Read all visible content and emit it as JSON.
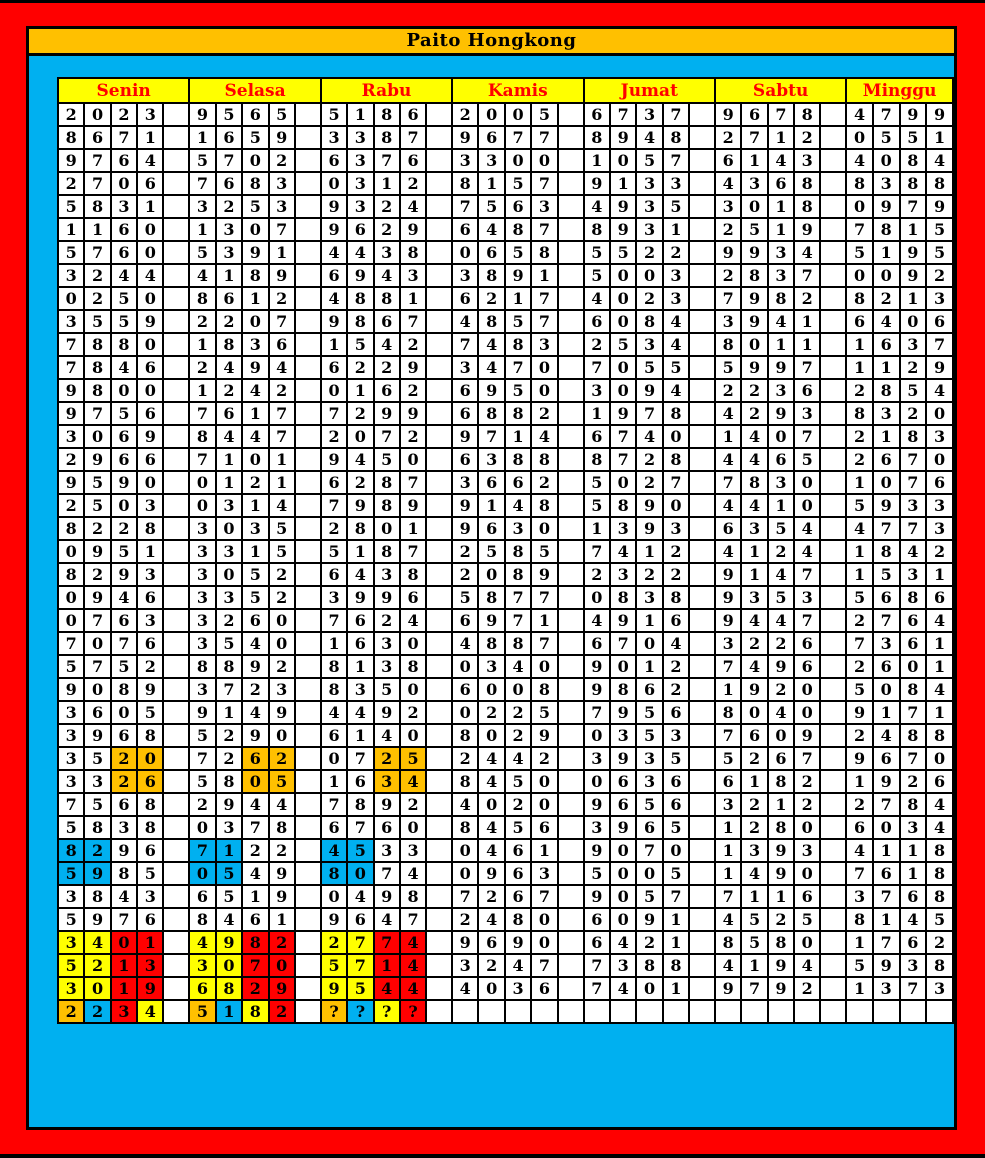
{
  "title": "Paito Hongkong",
  "days": [
    "Senin",
    "Selasa",
    "Rabu",
    "Kamis",
    "Jumat",
    "Sabtu",
    "Minggu"
  ],
  "colors": {
    "page_background": "#ff0000",
    "panel_background": "#00b0f0",
    "title_bar": "#ffc000",
    "header_background": "#ffff00",
    "header_text": "#ff0000",
    "cell_background": "#ffffff",
    "digit_text": "#000000",
    "highlight_orange": "#ffc000",
    "highlight_blue": "#00b0f0",
    "highlight_yellow": "#ffff00",
    "highlight_red": "#ff0000"
  },
  "rows": [
    [
      "2023",
      "9565",
      "5186",
      "2005",
      "6737",
      "9678",
      "4799"
    ],
    [
      "8671",
      "1659",
      "3387",
      "9677",
      "8948",
      "2712",
      "0551"
    ],
    [
      "9764",
      "5702",
      "6376",
      "3300",
      "1057",
      "6143",
      "4084"
    ],
    [
      "2706",
      "7683",
      "0312",
      "8157",
      "9133",
      "4368",
      "8388"
    ],
    [
      "5831",
      "3253",
      "9324",
      "7563",
      "4935",
      "3018",
      "0979"
    ],
    [
      "1160",
      "1307",
      "9629",
      "6487",
      "8931",
      "2519",
      "7815"
    ],
    [
      "5760",
      "5391",
      "4438",
      "0658",
      "5522",
      "9934",
      "5195"
    ],
    [
      "3244",
      "4189",
      "6943",
      "3891",
      "5003",
      "2837",
      "0092"
    ],
    [
      "0250",
      "8612",
      "4881",
      "6217",
      "4023",
      "7982",
      "8213"
    ],
    [
      "3559",
      "2207",
      "9867",
      "4857",
      "6084",
      "3941",
      "6406"
    ],
    [
      "7880",
      "1836",
      "1542",
      "7483",
      "2534",
      "8011",
      "1637"
    ],
    [
      "7846",
      "2494",
      "6229",
      "3470",
      "7055",
      "5997",
      "1129"
    ],
    [
      "9800",
      "1242",
      "0162",
      "6950",
      "3094",
      "2236",
      "2854"
    ],
    [
      "9756",
      "7617",
      "7299",
      "6882",
      "1978",
      "4293",
      "8320"
    ],
    [
      "3069",
      "8447",
      "2072",
      "9714",
      "6740",
      "1407",
      "2183"
    ],
    [
      "2966",
      "7101",
      "9450",
      "6388",
      "8728",
      "4465",
      "2670"
    ],
    [
      "9590",
      "0121",
      "6287",
      "3662",
      "5027",
      "7830",
      "1076"
    ],
    [
      "2503",
      "0314",
      "7989",
      "9148",
      "5890",
      "4410",
      "5933"
    ],
    [
      "8228",
      "3035",
      "2801",
      "9630",
      "1393",
      "6354",
      "4773"
    ],
    [
      "0951",
      "3315",
      "5187",
      "2585",
      "7412",
      "4124",
      "1842"
    ],
    [
      "8293",
      "3052",
      "6438",
      "2089",
      "2322",
      "9147",
      "1531"
    ],
    [
      "0946",
      "3352",
      "3996",
      "5877",
      "0838",
      "9353",
      "5686"
    ],
    [
      "0763",
      "3260",
      "7624",
      "6971",
      "4916",
      "9447",
      "2764"
    ],
    [
      "7076",
      "3540",
      "1630",
      "4887",
      "6704",
      "3226",
      "7361"
    ],
    [
      "5752",
      "8892",
      "8138",
      "0340",
      "9012",
      "7496",
      "2601"
    ],
    [
      "9089",
      "3723",
      "8350",
      "6008",
      "9862",
      "1920",
      "5084"
    ],
    [
      "3605",
      "9149",
      "4492",
      "0225",
      "7956",
      "8040",
      "9171"
    ],
    [
      "3968",
      "5290",
      "6140",
      "8029",
      "0353",
      "7609",
      "2488"
    ],
    [
      "3520",
      "7262",
      "0725",
      "2442",
      "3935",
      "5267",
      "9670"
    ],
    [
      "3326",
      "5805",
      "1634",
      "8450",
      "0636",
      "6182",
      "1926"
    ],
    [
      "7568",
      "2944",
      "7892",
      "4020",
      "9656",
      "3212",
      "2784"
    ],
    [
      "5838",
      "0378",
      "6760",
      "8456",
      "3965",
      "1280",
      "6034"
    ],
    [
      "8296",
      "7122",
      "4533",
      "0461",
      "9070",
      "1393",
      "4118"
    ],
    [
      "5985",
      "0549",
      "8074",
      "0963",
      "5005",
      "1490",
      "7618"
    ],
    [
      "3843",
      "6519",
      "0498",
      "7267",
      "9057",
      "7116",
      "3768"
    ],
    [
      "5976",
      "8461",
      "9647",
      "2480",
      "6091",
      "4525",
      "8145"
    ],
    [
      "3401",
      "4982",
      "2774",
      "9690",
      "6421",
      "8580",
      "1762"
    ],
    [
      "5213",
      "3070",
      "5714",
      "3247",
      "7388",
      "4194",
      "5938"
    ],
    [
      "3019",
      "6829",
      "9544",
      "4036",
      "7401",
      "9792",
      "1373"
    ],
    [
      "2234",
      "5182",
      "????",
      "",
      "",
      "",
      ""
    ]
  ],
  "cell_colors": {
    "29": {
      "0": [
        "",
        "",
        "o",
        "o"
      ],
      "1": [
        "",
        "",
        "o",
        "o"
      ],
      "2": [
        "",
        "",
        "o",
        "o"
      ]
    },
    "30": {
      "0": [
        "",
        "",
        "o",
        "o"
      ],
      "1": [
        "",
        "",
        "o",
        "o"
      ],
      "2": [
        "",
        "",
        "o",
        "o"
      ]
    },
    "33": {
      "0": [
        "b",
        "b",
        "",
        ""
      ],
      "1": [
        "b",
        "b",
        "",
        ""
      ],
      "2": [
        "b",
        "b",
        "",
        ""
      ]
    },
    "34": {
      "0": [
        "b",
        "b",
        "",
        ""
      ],
      "1": [
        "b",
        "b",
        "",
        ""
      ],
      "2": [
        "b",
        "b",
        "",
        ""
      ]
    },
    "37": {
      "0": [
        "y",
        "y",
        "r",
        "r"
      ],
      "1": [
        "y",
        "y",
        "r",
        "r"
      ],
      "2": [
        "y",
        "y",
        "r",
        "r"
      ]
    },
    "38": {
      "0": [
        "y",
        "y",
        "r",
        "r"
      ],
      "1": [
        "y",
        "y",
        "r",
        "r"
      ],
      "2": [
        "y",
        "y",
        "r",
        "r"
      ]
    },
    "39": {
      "0": [
        "y",
        "y",
        "r",
        "r"
      ],
      "1": [
        "y",
        "y",
        "r",
        "r"
      ],
      "2": [
        "y",
        "y",
        "r",
        "r"
      ]
    },
    "40": {
      "0": [
        "o",
        "b",
        "r",
        "y"
      ],
      "1": [
        "o",
        "b",
        "y",
        "r"
      ],
      "2": [
        "o",
        "b",
        "y",
        "r"
      ]
    }
  }
}
